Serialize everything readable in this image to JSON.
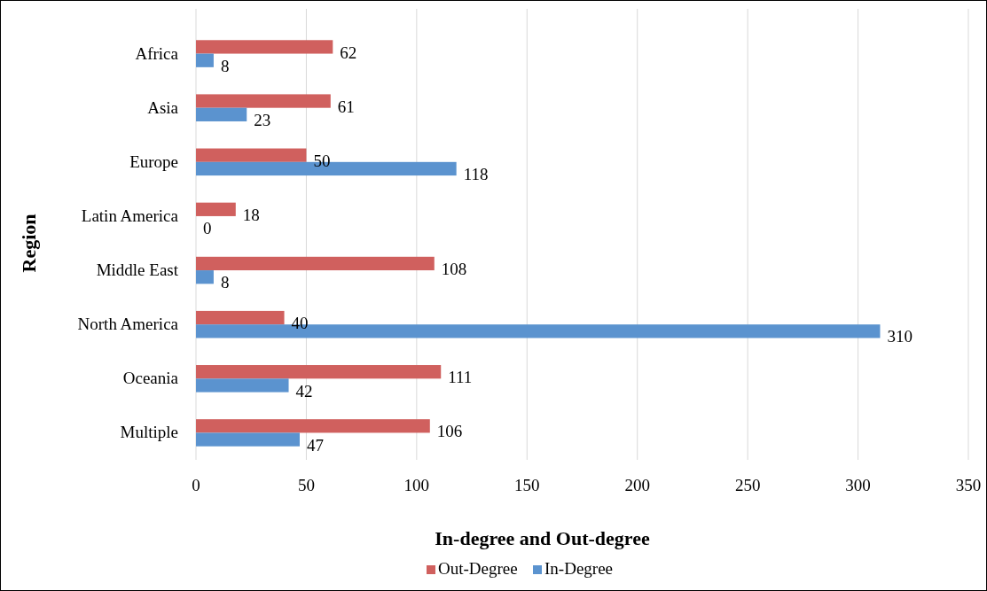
{
  "chart_data": {
    "type": "bar",
    "orientation": "horizontal",
    "xlabel": "In-degree and Out-degree",
    "ylabel": "Region",
    "categories": [
      "Africa",
      "Asia",
      "Europe",
      "Latin America",
      "Middle East",
      "North America",
      "Oceania",
      "Multiple"
    ],
    "series": [
      {
        "name": "Out-Degree",
        "color": "#d0605e",
        "values": [
          62,
          61,
          50,
          18,
          108,
          40,
          111,
          106
        ]
      },
      {
        "name": "In-Degree",
        "color": "#5b93cf",
        "values": [
          8,
          23,
          118,
          0,
          8,
          310,
          42,
          47
        ]
      }
    ],
    "xlim": [
      0,
      350
    ],
    "xticks": [
      0,
      50,
      100,
      150,
      200,
      250,
      300,
      350
    ],
    "grid": "x",
    "legend": "bottom",
    "data_labels": true
  }
}
